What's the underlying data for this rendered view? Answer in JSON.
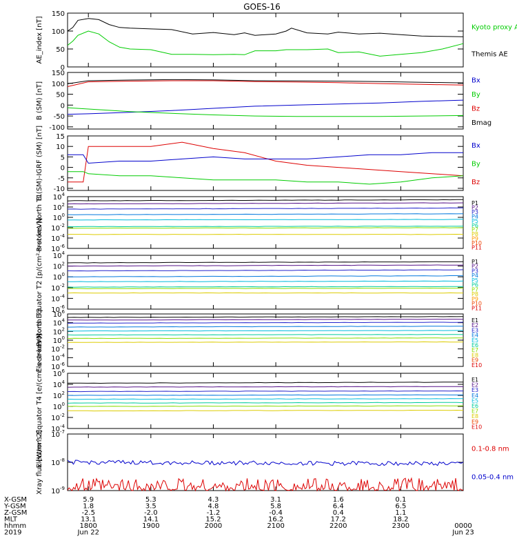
{
  "title": "GOES-16",
  "colors": {
    "black": "#000000",
    "green": "#00cc00",
    "blue": "#0000cc",
    "red": "#dd0000"
  },
  "chart_data": [
    {
      "type": "line",
      "ylabel": "AE_index [nT]",
      "ylim": [
        0,
        150
      ],
      "yticks": [
        "150",
        "100",
        "50",
        "0"
      ],
      "tickvals": [
        150,
        100,
        50,
        0
      ],
      "legend": [
        {
          "name": "Kyoto proxy AE",
          "color": "#00cc00"
        },
        {
          "name": "Themis AE",
          "color": "#000000"
        }
      ],
      "x": [
        "17:40",
        "17:45",
        "17:50",
        "18:00",
        "18:10",
        "18:20",
        "18:30",
        "18:40",
        "19:00",
        "19:20",
        "19:40",
        "20:00",
        "20:20",
        "20:30",
        "20:40",
        "21:00",
        "21:10",
        "21:15",
        "21:30",
        "21:50",
        "22:00",
        "22:20",
        "22:40",
        "23:00",
        "23:20",
        "23:40",
        "00:00"
      ],
      "series": [
        {
          "name": "Themis AE",
          "color": "#000000",
          "values": [
            100,
            110,
            130,
            135,
            132,
            118,
            110,
            108,
            106,
            104,
            92,
            96,
            90,
            95,
            88,
            92,
            100,
            108,
            95,
            92,
            97,
            92,
            94,
            90,
            86,
            85,
            84
          ]
        },
        {
          "name": "Kyoto proxy AE",
          "color": "#00cc00",
          "values": [
            60,
            72,
            88,
            100,
            92,
            70,
            55,
            50,
            48,
            35,
            35,
            34,
            35,
            34,
            45,
            45,
            48,
            48,
            48,
            50,
            40,
            42,
            30,
            35,
            40,
            50,
            65
          ]
        }
      ]
    },
    {
      "type": "line",
      "ylabel": "B (SM) [nT]",
      "ylim": [
        -110,
        150
      ],
      "yticks": [
        "150",
        "100",
        "50",
        "0",
        "-50",
        "-100"
      ],
      "tickvals": [
        150,
        100,
        50,
        0,
        -50,
        -100
      ],
      "legend": [
        {
          "name": "Bx",
          "color": "#0000cc"
        },
        {
          "name": "By",
          "color": "#00cc00"
        },
        {
          "name": "Bz",
          "color": "#dd0000"
        },
        {
          "name": "Bmag",
          "color": "#000000"
        }
      ],
      "x": [
        "17:40",
        "18:00",
        "18:40",
        "19:20",
        "20:00",
        "20:40",
        "21:20",
        "22:00",
        "22:40",
        "23:20",
        "00:00"
      ],
      "series": [
        {
          "name": "Bmag",
          "color": "#000000",
          "values": [
            98,
            112,
            115,
            117,
            116,
            112,
            111,
            110,
            108,
            105,
            102
          ]
        },
        {
          "name": "Bz",
          "color": "#dd0000",
          "values": [
            85,
            107,
            110,
            112,
            112,
            108,
            106,
            103,
            99,
            95,
            92
          ]
        },
        {
          "name": "Bx",
          "color": "#0000cc",
          "values": [
            -42,
            -40,
            -33,
            -25,
            -15,
            -5,
            0,
            5,
            10,
            17,
            23
          ]
        },
        {
          "name": "By",
          "color": "#00cc00",
          "values": [
            -12,
            -18,
            -30,
            -38,
            -45,
            -50,
            -52,
            -52,
            -52,
            -50,
            -48
          ]
        }
      ]
    },
    {
      "type": "line",
      "ylabel": "B (SM)-IGRF (SM) [nT]",
      "ylim": [
        -11,
        15
      ],
      "yticks": [
        "15",
        "10",
        "5",
        "0",
        "-5",
        "-10"
      ],
      "tickvals": [
        15,
        10,
        5,
        0,
        -5,
        -10
      ],
      "legend": [
        {
          "name": "Bx",
          "color": "#0000cc"
        },
        {
          "name": "By",
          "color": "#00cc00"
        },
        {
          "name": "Bz",
          "color": "#dd0000"
        }
      ],
      "x": [
        "17:40",
        "17:55",
        "18:00",
        "18:30",
        "19:00",
        "19:30",
        "20:00",
        "20:30",
        "21:00",
        "21:30",
        "22:00",
        "22:30",
        "23:00",
        "23:30",
        "00:00"
      ],
      "series": [
        {
          "name": "Bz",
          "color": "#dd0000",
          "values": [
            -7,
            -7,
            10,
            10,
            10,
            12,
            9,
            7,
            3,
            1,
            0,
            -1,
            -2,
            -3,
            -4
          ]
        },
        {
          "name": "Bx",
          "color": "#0000cc",
          "values": [
            6,
            6,
            2,
            3,
            3,
            4,
            5,
            4,
            4,
            4,
            5,
            6,
            6,
            7,
            7
          ]
        },
        {
          "name": "By",
          "color": "#00cc00",
          "values": [
            -2,
            -2,
            -3,
            -4,
            -4,
            -5,
            -6,
            -6,
            -6,
            -7,
            -7,
            -8,
            -7,
            -5,
            -4
          ]
        }
      ]
    },
    {
      "type": "line",
      "log": true,
      "ylabel": "Protons North T1",
      "ylim": [
        -6,
        4
      ],
      "yticks": [
        "10^4",
        "10^2",
        "10^0",
        "10^-2",
        "10^-4",
        "10^-6"
      ],
      "tickvals": [
        4,
        2,
        0,
        -2,
        -4,
        -6
      ],
      "legend": [
        {
          "name": "P1",
          "color": "#000000"
        },
        {
          "name": "P2",
          "color": "#551188"
        },
        {
          "name": "P3",
          "color": "#2222cc"
        },
        {
          "name": "P4",
          "color": "#0077dd"
        },
        {
          "name": "P5",
          "color": "#00bbdd"
        },
        {
          "name": "P6",
          "color": "#00cc99"
        },
        {
          "name": "P7",
          "color": "#88dd00"
        },
        {
          "name": "P8",
          "color": "#ddcc00"
        },
        {
          "name": "P9",
          "color": "#ff9900"
        },
        {
          "name": "P10",
          "color": "#ee4400"
        },
        {
          "name": "P11",
          "color": "#dd0000"
        }
      ],
      "series": [
        {
          "name": "P1",
          "color": "#000000",
          "values": [
            3.2,
            3.4
          ]
        },
        {
          "name": "P2",
          "color": "#551188",
          "values": [
            2.6,
            2.8
          ]
        },
        {
          "name": "P3",
          "color": "#2222cc",
          "values": [
            1.6,
            1.8
          ]
        },
        {
          "name": "P4",
          "color": "#0077dd",
          "values": [
            0.5,
            0.7
          ]
        },
        {
          "name": "P5",
          "color": "#00bbdd",
          "values": [
            -0.5,
            -0.4
          ]
        },
        {
          "name": "P6",
          "color": "#00cc99",
          "values": [
            -1.8,
            -1.7
          ]
        },
        {
          "name": "P7",
          "color": "#88dd00",
          "values": [
            -2.1,
            -2.0
          ]
        },
        {
          "name": "P8",
          "color": "#ddcc00",
          "values": [
            -3.3,
            -3.3
          ]
        }
      ]
    },
    {
      "type": "line",
      "log": true,
      "ylabel": "Protons Equator T2 [p/(cm²-s-sr-keV)]",
      "ylim": [
        -6,
        4
      ],
      "yticks": [
        "10^4",
        "10^2",
        "10^0",
        "10^-2",
        "10^-4",
        "10^-6"
      ],
      "tickvals": [
        4,
        2,
        0,
        -2,
        -4,
        -6
      ],
      "legend": [
        {
          "name": "P1",
          "color": "#000000"
        },
        {
          "name": "P2",
          "color": "#551188"
        },
        {
          "name": "P3",
          "color": "#2222cc"
        },
        {
          "name": "P4",
          "color": "#0077dd"
        },
        {
          "name": "P5",
          "color": "#00bbdd"
        },
        {
          "name": "P6",
          "color": "#00cc99"
        },
        {
          "name": "P7",
          "color": "#88dd00"
        },
        {
          "name": "P8",
          "color": "#ddcc00"
        },
        {
          "name": "P9",
          "color": "#ff9900"
        },
        {
          "name": "P10",
          "color": "#ee4400"
        },
        {
          "name": "P11",
          "color": "#dd0000"
        }
      ],
      "series": [
        {
          "name": "P1",
          "color": "#000000",
          "values": [
            2.6,
            2.8
          ]
        },
        {
          "name": "P2",
          "color": "#551188",
          "values": [
            2.0,
            2.2
          ]
        },
        {
          "name": "P3",
          "color": "#2222cc",
          "values": [
            1.1,
            1.3
          ]
        },
        {
          "name": "P4",
          "color": "#0077dd",
          "values": [
            0.0,
            0.2
          ]
        },
        {
          "name": "P5",
          "color": "#00bbdd",
          "values": [
            -0.9,
            -0.8
          ]
        },
        {
          "name": "P6",
          "color": "#00cc99",
          "values": [
            -1.9,
            -1.8
          ]
        },
        {
          "name": "P7",
          "color": "#88dd00",
          "values": [
            -2.2,
            -2.1
          ]
        },
        {
          "name": "P8",
          "color": "#ddcc00",
          "values": [
            -3.0,
            -3.0
          ]
        }
      ]
    },
    {
      "type": "line",
      "log": true,
      "ylabel": "Electrons North T3",
      "ylim": [
        -6,
        6
      ],
      "yticks": [
        "10^6",
        "10^4",
        "10^2",
        "10^0",
        "10^-2",
        "10^-4",
        "10^-6"
      ],
      "tickvals": [
        6,
        4,
        2,
        0,
        -2,
        -4,
        -6
      ],
      "legend": [
        {
          "name": "E1",
          "color": "#000000"
        },
        {
          "name": "E2",
          "color": "#551188"
        },
        {
          "name": "E3",
          "color": "#2222cc"
        },
        {
          "name": "E4",
          "color": "#0077dd"
        },
        {
          "name": "E5",
          "color": "#00bbdd"
        },
        {
          "name": "E6",
          "color": "#00cc99"
        },
        {
          "name": "E7",
          "color": "#88dd00"
        },
        {
          "name": "E8",
          "color": "#ddcc00"
        },
        {
          "name": "E9",
          "color": "#ee4400"
        },
        {
          "name": "E10",
          "color": "#dd0000"
        }
      ],
      "series": [
        {
          "name": "E1",
          "color": "#000000",
          "values": [
            5.2,
            5.4
          ]
        },
        {
          "name": "E2",
          "color": "#551188",
          "values": [
            4.6,
            4.8
          ]
        },
        {
          "name": "E3",
          "color": "#2222cc",
          "values": [
            3.9,
            4.1
          ]
        },
        {
          "name": "E4",
          "color": "#0077dd",
          "values": [
            3.0,
            3.2
          ]
        },
        {
          "name": "E5",
          "color": "#00bbdd",
          "values": [
            2.1,
            2.2
          ]
        },
        {
          "name": "E6",
          "color": "#00cc99",
          "values": [
            1.2,
            1.3
          ]
        },
        {
          "name": "E7",
          "color": "#88dd00",
          "values": [
            0.4,
            0.5
          ]
        },
        {
          "name": "E8",
          "color": "#ddcc00",
          "values": [
            -0.5,
            -0.4
          ]
        }
      ]
    },
    {
      "type": "line",
      "log": true,
      "ylabel": "Electrons Equator T4 [e/(cm²-s-sr-keV)]",
      "ylim": [
        -4,
        6
      ],
      "yticks": [
        "10^6",
        "10^4",
        "10^2",
        "10^0",
        "10^-2",
        "10^-4"
      ],
      "tickvals": [
        6,
        4,
        2,
        0,
        -2,
        -4
      ],
      "legend": [
        {
          "name": "E1",
          "color": "#000000"
        },
        {
          "name": "E2",
          "color": "#551188"
        },
        {
          "name": "E3",
          "color": "#2222cc"
        },
        {
          "name": "E4",
          "color": "#0077dd"
        },
        {
          "name": "E5",
          "color": "#00bbdd"
        },
        {
          "name": "E6",
          "color": "#00cc99"
        },
        {
          "name": "E7",
          "color": "#88dd00"
        },
        {
          "name": "E8",
          "color": "#ddcc00"
        },
        {
          "name": "E9",
          "color": "#ee4400"
        },
        {
          "name": "E10",
          "color": "#dd0000"
        }
      ],
      "series": [
        {
          "name": "E1",
          "color": "#000000",
          "values": [
            4.2,
            4.4
          ]
        },
        {
          "name": "E2",
          "color": "#551188",
          "values": [
            3.5,
            3.6
          ]
        },
        {
          "name": "E3",
          "color": "#2222cc",
          "values": [
            2.7,
            2.8
          ]
        },
        {
          "name": "E4",
          "color": "#0077dd",
          "values": [
            2.0,
            2.1
          ]
        },
        {
          "name": "E5",
          "color": "#00bbdd",
          "values": [
            1.3,
            1.4
          ]
        },
        {
          "name": "E6",
          "color": "#00cc99",
          "values": [
            0.6,
            0.7
          ]
        },
        {
          "name": "E7",
          "color": "#88dd00",
          "values": [
            0.0,
            0.1
          ]
        },
        {
          "name": "E8",
          "color": "#ddcc00",
          "values": [
            -0.8,
            -0.7
          ]
        }
      ]
    },
    {
      "type": "line",
      "log": true,
      "ylabel": "Xray flux [W/m^2]",
      "ylim": [
        -9,
        -7
      ],
      "yticks": [
        "10^-7",
        "10^-8",
        "10^-9"
      ],
      "tickvals": [
        -7,
        -8,
        -9
      ],
      "legend": [
        {
          "name": "0.1-0.8 nm",
          "color": "#dd0000"
        },
        {
          "name": "0.05-0.4 nm",
          "color": "#0000cc"
        }
      ],
      "series": [
        {
          "name": "0.05-0.4 nm",
          "color": "#0000cc",
          "values": [
            -8.0,
            -8.05
          ]
        }
      ]
    }
  ],
  "ephemeris": {
    "rows": [
      {
        "label": "X-GSM",
        "values": [
          "5.9",
          "5.3",
          "4.3",
          "3.1",
          "1.6",
          "0.1"
        ]
      },
      {
        "label": "Y-GSM",
        "values": [
          "1.8",
          "3.5",
          "4.8",
          "5.8",
          "6.4",
          "6.5"
        ]
      },
      {
        "label": "Z-GSM",
        "values": [
          "-2.5",
          "-2.0",
          "-1.2",
          "-0.4",
          "0.4",
          "1.1"
        ]
      },
      {
        "label": "MLT",
        "values": [
          "13.1",
          "14.1",
          "15.2",
          "16.2",
          "17.2",
          "18.2"
        ]
      },
      {
        "label": "hhmm",
        "values": [
          "1800",
          "1900",
          "2000",
          "2100",
          "2200",
          "2300"
        ],
        "last": "0000"
      },
      {
        "label": "2019",
        "values": [
          "Jun 22"
        ],
        "last": "Jun 23"
      }
    ]
  }
}
